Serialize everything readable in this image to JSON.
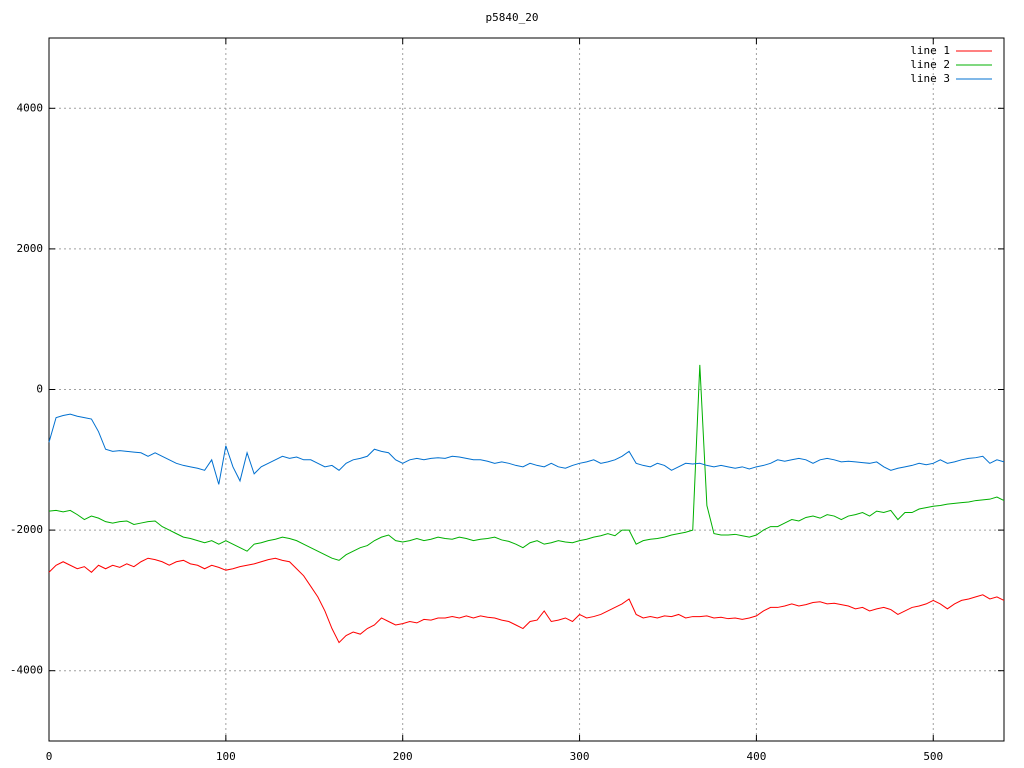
{
  "chart_data": {
    "type": "line",
    "title": "p5840_20",
    "x": [
      0,
      4,
      8,
      12,
      16,
      20,
      24,
      28,
      32,
      36,
      40,
      44,
      48,
      52,
      56,
      60,
      64,
      68,
      72,
      76,
      80,
      84,
      88,
      92,
      96,
      100,
      104,
      108,
      112,
      116,
      120,
      124,
      128,
      132,
      136,
      140,
      144,
      148,
      152,
      156,
      160,
      164,
      168,
      172,
      176,
      180,
      184,
      188,
      192,
      196,
      200,
      204,
      208,
      212,
      216,
      220,
      224,
      228,
      232,
      236,
      240,
      244,
      248,
      252,
      256,
      260,
      264,
      268,
      272,
      276,
      280,
      284,
      288,
      292,
      296,
      300,
      304,
      308,
      312,
      316,
      320,
      324,
      328,
      332,
      336,
      340,
      344,
      348,
      352,
      356,
      360,
      364,
      368,
      372,
      376,
      380,
      384,
      388,
      392,
      396,
      400,
      404,
      408,
      412,
      416,
      420,
      424,
      428,
      432,
      436,
      440,
      444,
      448,
      452,
      456,
      460,
      464,
      468,
      472,
      476,
      480,
      484,
      488,
      492,
      496,
      500,
      504,
      508,
      512,
      516,
      520,
      524,
      528,
      532,
      536,
      540
    ],
    "series": [
      {
        "name": "line 1",
        "color": "#ff0000",
        "values": [
          -2600,
          -2500,
          -2450,
          -2500,
          -2550,
          -2520,
          -2600,
          -2500,
          -2550,
          -2500,
          -2530,
          -2480,
          -2520,
          -2450,
          -2400,
          -2420,
          -2450,
          -2500,
          -2450,
          -2430,
          -2480,
          -2500,
          -2550,
          -2500,
          -2530,
          -2570,
          -2550,
          -2520,
          -2500,
          -2480,
          -2450,
          -2420,
          -2400,
          -2430,
          -2450,
          -2550,
          -2650,
          -2800,
          -2950,
          -3150,
          -3400,
          -3600,
          -3500,
          -3450,
          -3480,
          -3400,
          -3350,
          -3250,
          -3300,
          -3350,
          -3330,
          -3300,
          -3320,
          -3270,
          -3280,
          -3250,
          -3250,
          -3230,
          -3250,
          -3220,
          -3250,
          -3220,
          -3240,
          -3250,
          -3280,
          -3300,
          -3350,
          -3400,
          -3300,
          -3280,
          -3150,
          -3300,
          -3280,
          -3250,
          -3300,
          -3200,
          -3250,
          -3230,
          -3200,
          -3150,
          -3100,
          -3050,
          -2980,
          -3200,
          -3250,
          -3230,
          -3250,
          -3220,
          -3230,
          -3200,
          -3250,
          -3230,
          -3230,
          -3220,
          -3250,
          -3240,
          -3260,
          -3250,
          -3270,
          -3250,
          -3220,
          -3150,
          -3100,
          -3100,
          -3080,
          -3050,
          -3080,
          -3060,
          -3030,
          -3020,
          -3050,
          -3040,
          -3060,
          -3080,
          -3120,
          -3100,
          -3150,
          -3120,
          -3100,
          -3130,
          -3200,
          -3150,
          -3100,
          -3080,
          -3050,
          -3000,
          -3050,
          -3120,
          -3050,
          -3000,
          -2980,
          -2950,
          -2920,
          -2980,
          -2950,
          -3000
        ]
      },
      {
        "name": "line 2",
        "color": "#00b000",
        "values": [
          -1730,
          -1720,
          -1740,
          -1720,
          -1780,
          -1850,
          -1800,
          -1830,
          -1880,
          -1900,
          -1880,
          -1870,
          -1920,
          -1900,
          -1880,
          -1870,
          -1950,
          -2000,
          -2050,
          -2100,
          -2120,
          -2150,
          -2180,
          -2150,
          -2200,
          -2150,
          -2200,
          -2250,
          -2300,
          -2200,
          -2180,
          -2150,
          -2130,
          -2100,
          -2120,
          -2150,
          -2200,
          -2250,
          -2300,
          -2350,
          -2400,
          -2430,
          -2350,
          -2300,
          -2250,
          -2220,
          -2150,
          -2100,
          -2070,
          -2150,
          -2170,
          -2150,
          -2120,
          -2150,
          -2130,
          -2100,
          -2120,
          -2130,
          -2100,
          -2120,
          -2150,
          -2130,
          -2120,
          -2100,
          -2140,
          -2160,
          -2200,
          -2250,
          -2180,
          -2150,
          -2200,
          -2180,
          -2150,
          -2170,
          -2180,
          -2150,
          -2130,
          -2100,
          -2080,
          -2050,
          -2080,
          -2000,
          -2000,
          -2200,
          -2150,
          -2130,
          -2120,
          -2100,
          -2070,
          -2050,
          -2030,
          -2000,
          350,
          -1650,
          -2050,
          -2070,
          -2070,
          -2060,
          -2080,
          -2100,
          -2070,
          -2000,
          -1950,
          -1950,
          -1900,
          -1850,
          -1870,
          -1820,
          -1800,
          -1830,
          -1780,
          -1800,
          -1850,
          -1800,
          -1780,
          -1750,
          -1800,
          -1730,
          -1750,
          -1720,
          -1850,
          -1750,
          -1750,
          -1700,
          -1680,
          -1660,
          -1650,
          -1630,
          -1620,
          -1610,
          -1600,
          -1580,
          -1570,
          -1560,
          -1530,
          -1580
        ]
      },
      {
        "name": "line 3",
        "color": "#0070d0",
        "values": [
          -750,
          -400,
          -370,
          -350,
          -380,
          -400,
          -420,
          -600,
          -850,
          -880,
          -870,
          -880,
          -890,
          -900,
          -950,
          -900,
          -950,
          -1000,
          -1050,
          -1080,
          -1100,
          -1120,
          -1150,
          -1000,
          -1350,
          -800,
          -1100,
          -1300,
          -900,
          -1200,
          -1100,
          -1050,
          -1000,
          -950,
          -980,
          -960,
          -1000,
          -1000,
          -1050,
          -1100,
          -1080,
          -1150,
          -1050,
          -1000,
          -980,
          -950,
          -850,
          -880,
          -900,
          -1000,
          -1050,
          -1000,
          -980,
          -1000,
          -980,
          -970,
          -980,
          -950,
          -960,
          -980,
          -1000,
          -1000,
          -1020,
          -1050,
          -1030,
          -1050,
          -1080,
          -1100,
          -1050,
          -1080,
          -1100,
          -1050,
          -1100,
          -1120,
          -1080,
          -1050,
          -1030,
          -1000,
          -1050,
          -1030,
          -1000,
          -950,
          -880,
          -1050,
          -1080,
          -1100,
          -1050,
          -1080,
          -1150,
          -1100,
          -1050,
          -1060,
          -1050,
          -1080,
          -1100,
          -1080,
          -1100,
          -1120,
          -1100,
          -1130,
          -1100,
          -1080,
          -1050,
          -1000,
          -1020,
          -1000,
          -980,
          -1000,
          -1050,
          -1000,
          -980,
          -1000,
          -1030,
          -1020,
          -1030,
          -1040,
          -1050,
          -1030,
          -1100,
          -1150,
          -1120,
          -1100,
          -1080,
          -1050,
          -1070,
          -1050,
          -1000,
          -1050,
          -1030,
          -1000,
          -980,
          -970,
          -950,
          -1050,
          -1000,
          -1030
        ]
      }
    ],
    "xlim": [
      0,
      540
    ],
    "ylim": [
      -5000,
      5000
    ],
    "xticks": [
      0,
      100,
      200,
      300,
      400,
      500
    ],
    "yticks": [
      -4000,
      -2000,
      0,
      2000,
      4000
    ],
    "grid": true,
    "legend": "top-right"
  }
}
